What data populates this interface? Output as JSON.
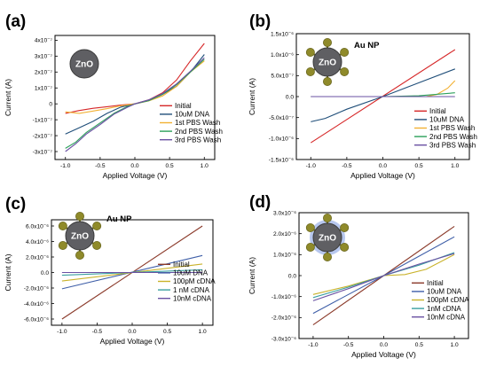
{
  "figure": {
    "panels": [
      {
        "id": "a",
        "label": "(a)",
        "particle_label": "ZnO",
        "nanoparticle_label": "",
        "particle_style": "plain"
      },
      {
        "id": "b",
        "label": "(b)",
        "particle_label": "ZnO",
        "nanoparticle_label": "Au NP",
        "particle_style": "decorated"
      },
      {
        "id": "c",
        "label": "(c)",
        "particle_label": "ZnO",
        "nanoparticle_label": "Au NP",
        "particle_style": "decorated"
      },
      {
        "id": "d",
        "label": "(d)",
        "particle_label": "ZnO",
        "nanoparticle_label": "",
        "particle_style": "decorated-ring"
      }
    ]
  },
  "colors": {
    "zno_body": "#5f5f63",
    "zno_edge": "#3a3a3a",
    "au_np": "#8f8a2a",
    "au_np_dark": "#6b6820",
    "ring": "#9fb4e8"
  },
  "chart_data": [
    {
      "type": "line",
      "xlabel": "Applied Voltage (V)",
      "ylabel": "Current (A)",
      "xlim": [
        -1.15,
        1.15
      ],
      "ylim": [
        -3.5e-07,
        4.3e-07
      ],
      "xticks": [
        -1.0,
        -0.5,
        0.0,
        0.5,
        1.0
      ],
      "xtick_labels": [
        "-1.0",
        "-0.5",
        "0.0",
        "0.5",
        "1.0"
      ],
      "yticks": [
        -3e-07,
        -2e-07,
        -1e-07,
        0,
        1e-07,
        2e-07,
        3e-07,
        4e-07
      ],
      "ytick_labels": [
        "-3x10⁻⁷",
        "-2x10⁻⁷",
        "-1x10⁻⁷",
        "0",
        "1x10⁻⁷",
        "2x10⁻⁷",
        "3x10⁻⁷",
        "4x10⁻⁷"
      ],
      "legend_position": "lower-right",
      "series": [
        {
          "name": "Initial",
          "color": "#d62728",
          "x": [
            -1.0,
            -0.8,
            -0.6,
            -0.4,
            -0.2,
            0.0,
            0.2,
            0.4,
            0.6,
            0.8,
            1.0
          ],
          "y": [
            -6e-08,
            -4.2e-08,
            -2.8e-08,
            -1.8e-08,
            -8e-09,
            0.0,
            2.5e-08,
            7e-08,
            1.5e-07,
            2.7e-07,
            3.8e-07
          ]
        },
        {
          "name": "10uM DNA",
          "color": "#1f4e79",
          "x": [
            -1.0,
            -0.8,
            -0.6,
            -0.4,
            -0.2,
            0.0,
            0.2,
            0.4,
            0.6,
            0.8,
            1.0
          ],
          "y": [
            -1.9e-07,
            -1.5e-07,
            -1.1e-07,
            -6e-08,
            -2e-08,
            0.0,
            2e-08,
            6e-08,
            1.1e-07,
            2e-07,
            3.1e-07
          ]
        },
        {
          "name": "1st PBS Wash",
          "color": "#f2b134",
          "x": [
            -1.0,
            -0.8,
            -0.6,
            -0.4,
            -0.2,
            0.0,
            0.2,
            0.4,
            0.6,
            0.8,
            1.0
          ],
          "y": [
            -5e-08,
            -6e-08,
            -4.5e-08,
            -3e-08,
            -1.2e-08,
            0.0,
            1.8e-08,
            5e-08,
            1.1e-07,
            2e-07,
            2.7e-07
          ]
        },
        {
          "name": "2nd PBS Wash",
          "color": "#2ca05a",
          "x": [
            -1.0,
            -0.85,
            -0.7,
            -0.5,
            -0.3,
            -0.1,
            0.0,
            0.2,
            0.4,
            0.6,
            0.8,
            1.0
          ],
          "y": [
            -2.8e-07,
            -2.4e-07,
            -1.8e-07,
            -1.2e-07,
            -6e-08,
            -1.5e-08,
            0.0,
            2e-08,
            6e-08,
            1.2e-07,
            2e-07,
            2.8e-07
          ]
        },
        {
          "name": "3rd PBS Wash",
          "color": "#6a51a3",
          "x": [
            -1.0,
            -0.85,
            -0.7,
            -0.5,
            -0.3,
            -0.1,
            0.0,
            0.2,
            0.4,
            0.6,
            0.8,
            1.0
          ],
          "y": [
            -3e-07,
            -2.5e-07,
            -1.9e-07,
            -1.3e-07,
            -6.5e-08,
            -2e-08,
            0.0,
            2.5e-08,
            6.5e-08,
            1.25e-07,
            2.05e-07,
            2.9e-07
          ]
        }
      ]
    },
    {
      "type": "line",
      "xlabel": "Applied Voltage (V)",
      "ylabel": "Current (A)",
      "xlim": [
        -1.2,
        1.2
      ],
      "ylim": [
        -1.5e-06,
        1.5e-06
      ],
      "xticks": [
        -1.0,
        -0.5,
        0.0,
        0.5,
        1.0
      ],
      "xtick_labels": [
        "-1.0",
        "-0.5",
        "0.0",
        "0.5",
        "1.0"
      ],
      "yticks": [
        -1.5e-06,
        -1e-06,
        -5e-07,
        0,
        5e-07,
        1e-06,
        1.5e-06
      ],
      "ytick_labels": [
        "-1.5x10⁻⁶",
        "-1.0x10⁻⁶",
        "-5.0x10⁻⁷",
        "0.0",
        "5.0x10⁻⁷",
        "1.0x10⁻⁶",
        "1.5x10⁻⁶"
      ],
      "legend_position": "lower-right",
      "series": [
        {
          "name": "Initial",
          "color": "#d62728",
          "x": [
            -1.0,
            1.0
          ],
          "y": [
            -1.1e-06,
            1.12e-06
          ]
        },
        {
          "name": "10uM DNA",
          "color": "#1f4e79",
          "x": [
            -1.0,
            -0.8,
            -0.5,
            0.0,
            0.5,
            1.0
          ],
          "y": [
            -6e-07,
            -5.2e-07,
            -3e-07,
            0.0,
            3.3e-07,
            6.6e-07
          ]
        },
        {
          "name": "1st PBS Wash",
          "color": "#f2b134",
          "x": [
            -1.0,
            0.0,
            0.6,
            0.75,
            0.9,
            1.0
          ],
          "y": [
            0.0,
            0.0,
            0.0,
            5e-08,
            2e-07,
            3.8e-07
          ]
        },
        {
          "name": "2nd PBS Wash",
          "color": "#2ca05a",
          "x": [
            -1.0,
            0.0,
            0.5,
            1.0
          ],
          "y": [
            0.0,
            0.0,
            2e-08,
            9e-08
          ]
        },
        {
          "name": "3rd PBS Wash",
          "color": "#6a51a3",
          "x": [
            -1.0,
            0.0,
            1.0
          ],
          "y": [
            0.0,
            0.0,
            0.0
          ]
        }
      ]
    },
    {
      "type": "line",
      "xlabel": "Applied Voltage (V)",
      "ylabel": "Current (A)",
      "xlim": [
        -1.15,
        1.15
      ],
      "ylim": [
        -6.8e-06,
        6.8e-06
      ],
      "xticks": [
        -1.0,
        -0.5,
        0.0,
        0.5,
        1.0
      ],
      "xtick_labels": [
        "-1.0",
        "-0.5",
        "0.0",
        "0.5",
        "1.0"
      ],
      "yticks": [
        -6e-06,
        -4e-06,
        -2e-06,
        0,
        2e-06,
        4e-06,
        6e-06
      ],
      "ytick_labels": [
        "-6.0x10⁻⁶",
        "-4.0x10⁻⁶",
        "-2.0x10⁻⁶",
        "0.0",
        "2.0x10⁻⁶",
        "4.0x10⁻⁶",
        "6.0x10⁻⁶"
      ],
      "legend_position": "lower-right",
      "series": [
        {
          "name": "Initial",
          "color": "#8b3a2a",
          "x": [
            -1.0,
            1.0
          ],
          "y": [
            -6e-06,
            6e-06
          ]
        },
        {
          "name": "10uM DNA",
          "color": "#3f5fa8",
          "x": [
            -1.0,
            1.0
          ],
          "y": [
            -2.1e-06,
            2.2e-06
          ]
        },
        {
          "name": "100pM cDNA",
          "color": "#c9b22a",
          "x": [
            -1.0,
            1.0
          ],
          "y": [
            -1.1e-06,
            1.1e-06
          ]
        },
        {
          "name": "1 nM cDNA",
          "color": "#3aa0a0",
          "x": [
            -1.0,
            1.0
          ],
          "y": [
            -3.5e-07,
            3.5e-07
          ]
        },
        {
          "name": "10nM cDNA",
          "color": "#6a51a3",
          "x": [
            -1.0,
            1.0
          ],
          "y": [
            0.0,
            0.0
          ]
        }
      ]
    },
    {
      "type": "line",
      "xlabel": "Applied Voltage (V)",
      "ylabel": "Current (A)",
      "xlim": [
        -1.2,
        1.2
      ],
      "ylim": [
        -3e-06,
        3e-06
      ],
      "xticks": [
        -1.0,
        -0.5,
        0.0,
        0.5,
        1.0
      ],
      "xtick_labels": [
        "-1.0",
        "-0.5",
        "0.0",
        "0.5",
        "1.0"
      ],
      "yticks": [
        -3e-06,
        -2e-06,
        -1e-06,
        0,
        1e-06,
        2e-06,
        3e-06
      ],
      "ytick_labels": [
        "-3.0x10⁻⁶",
        "-2.0x10⁻⁶",
        "-1.0x10⁻⁶",
        "0.0",
        "1.0x10⁻⁶",
        "2.0x10⁻⁶",
        "3.0x10⁻⁶"
      ],
      "legend_position": "lower-right",
      "series": [
        {
          "name": "Initial",
          "color": "#8b3a2a",
          "x": [
            -1.0,
            0.0,
            1.0
          ],
          "y": [
            -2.35e-06,
            0.0,
            2.35e-06
          ]
        },
        {
          "name": "10uM DNA",
          "color": "#3f5fa8",
          "x": [
            -1.0,
            0.0,
            1.0
          ],
          "y": [
            -1.8e-06,
            0.0,
            1.85e-06
          ]
        },
        {
          "name": "100pM cDNA",
          "color": "#c9b22a",
          "x": [
            -1.0,
            -0.5,
            0.0,
            0.3,
            0.6,
            1.0
          ],
          "y": [
            -9e-07,
            -5e-07,
            0.0,
            5e-08,
            3e-07,
            1e-06
          ]
        },
        {
          "name": "1nM cDNA",
          "color": "#3aa0a0",
          "x": [
            -1.0,
            -0.5,
            0.0,
            0.5,
            1.0
          ],
          "y": [
            -1.05e-06,
            -5.5e-07,
            0.0,
            5e-07,
            1.1e-06
          ]
        },
        {
          "name": "10nM cDNA",
          "color": "#6a51a3",
          "x": [
            -1.0,
            -0.5,
            0.0,
            0.5,
            1.0
          ],
          "y": [
            -1.2e-06,
            -6.2e-07,
            0.0,
            5.5e-07,
            1.05e-06
          ]
        }
      ]
    }
  ]
}
